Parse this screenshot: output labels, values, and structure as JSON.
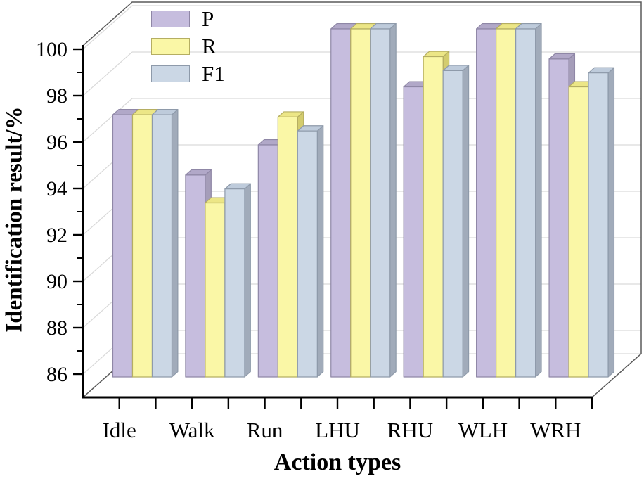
{
  "figure": {
    "background": "#ffffff"
  },
  "legend": {
    "position": "top-left",
    "items": [
      {
        "label": "P"
      },
      {
        "label": "R"
      },
      {
        "label": "F1"
      }
    ]
  },
  "chart_data": {
    "type": "bar",
    "projection": "3d-oblique",
    "title": "",
    "xlabel": "Action types",
    "ylabel": "Identification result/%",
    "categories": [
      "Idle",
      "Walk",
      "Run",
      "LHU",
      "RHU",
      "WLH",
      "WRH"
    ],
    "series": [
      {
        "name": "P",
        "values": [
          96.3,
          93.7,
          95.0,
          100.0,
          97.5,
          100.0,
          98.7
        ],
        "color": "#c6bdde",
        "top_color": "#b1a8c8",
        "side_color": "#a59db9",
        "stroke": "#8f87a6"
      },
      {
        "name": "R",
        "values": [
          96.3,
          92.5,
          96.2,
          100.0,
          98.8,
          100.0,
          97.5
        ],
        "color": "#faf7a6",
        "top_color": "#ece686",
        "side_color": "#d3cc6e",
        "stroke": "#b5ae62"
      },
      {
        "name": "F1",
        "values": [
          96.3,
          93.1,
          95.6,
          100.0,
          98.2,
          100.0,
          98.1
        ],
        "color": "#cbd7e5",
        "top_color": "#becbdb",
        "side_color": "#a1abba",
        "stroke": "#8e9aaa"
      }
    ],
    "y_ticks": [
      86,
      88,
      90,
      92,
      94,
      96,
      98,
      100
    ],
    "y_minor_ticks": [
      87,
      89,
      91,
      93,
      95,
      97,
      99
    ],
    "ylim": [
      85,
      100.15
    ],
    "grid": true,
    "grid_color": "#d9d9d9",
    "frame_color": "#5a5a5a",
    "axis_color": "#000000",
    "legend_position": "top-left"
  }
}
